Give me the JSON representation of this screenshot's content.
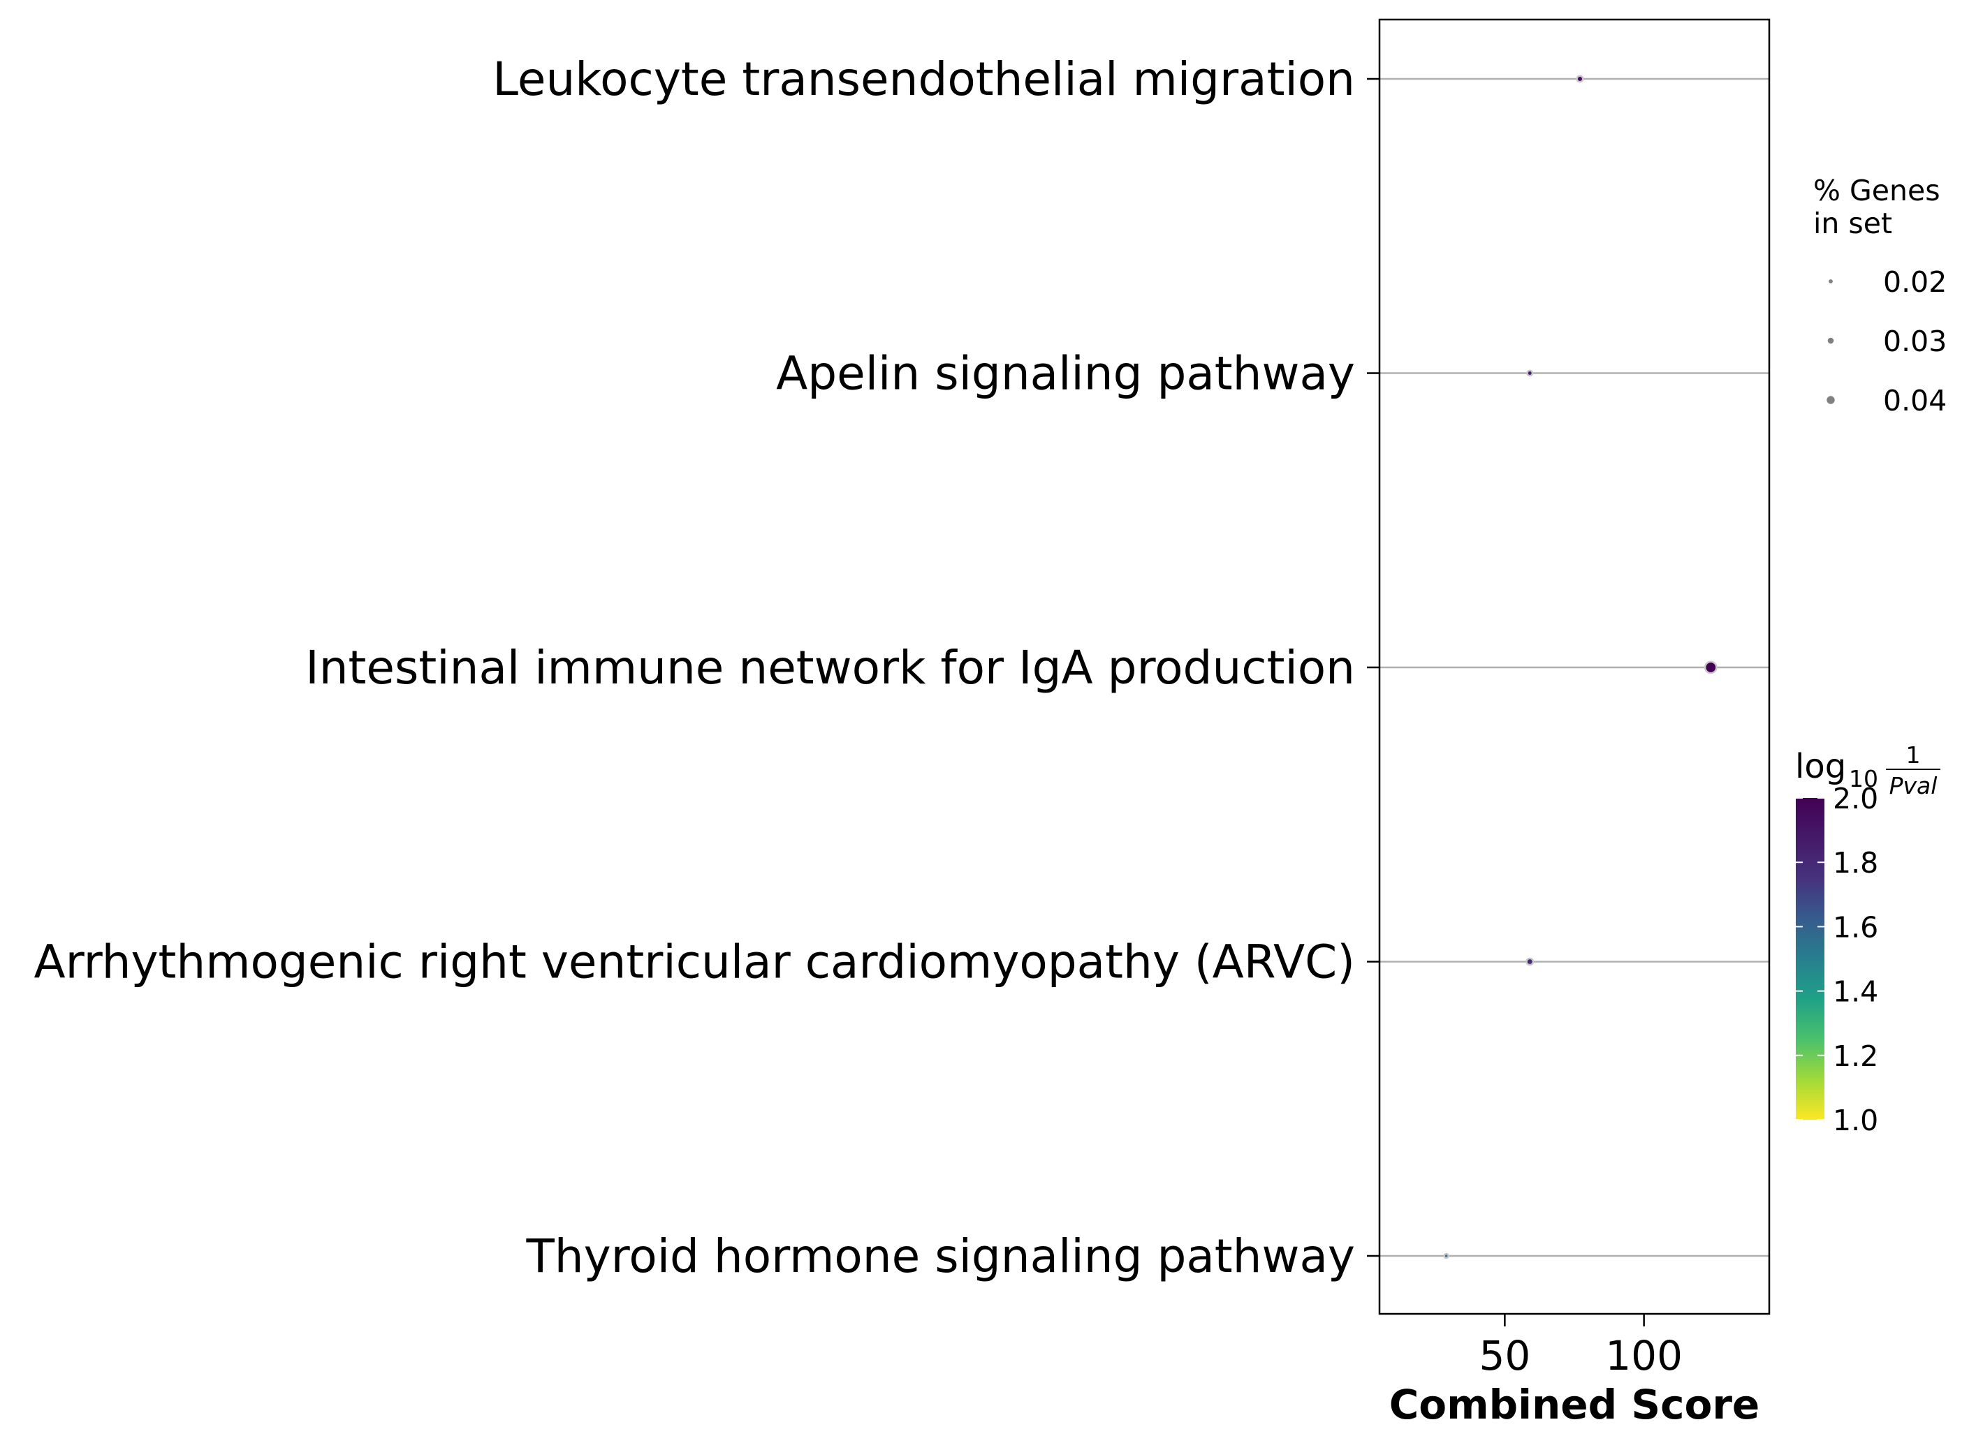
{
  "chart_data": {
    "type": "scatter",
    "xlabel": "Combined Score",
    "ylabel": "",
    "xlim": [
      5,
      145
    ],
    "x_ticks": [
      50,
      100
    ],
    "grid": "horizontal lines",
    "categories": [
      "Leukocyte transendothelial migration",
      "Apelin signaling pathway",
      "Intestinal immune network for IgA production",
      "Arrhythmogenic right ventricular cardiomyopathy (ARVC)",
      "Thyroid hormone signaling pathway"
    ],
    "points": [
      {
        "term": "Leukocyte transendothelial migration",
        "combined_score": 77,
        "log10_1_over_pval": 1.95,
        "pct_genes_in_set": 0.02
      },
      {
        "term": "Apelin signaling pathway",
        "combined_score": 59,
        "log10_1_over_pval": 1.85,
        "pct_genes_in_set": 0.017
      },
      {
        "term": "Intestinal immune network for IgA production",
        "combined_score": 124,
        "log10_1_over_pval": 2.0,
        "pct_genes_in_set": 0.041
      },
      {
        "term": "Arrhythmogenic right ventricular cardiomyopathy (ARVC)",
        "combined_score": 59,
        "log10_1_over_pval": 1.8,
        "pct_genes_in_set": 0.022
      },
      {
        "term": "Thyroid hormone signaling pathway",
        "combined_score": 29,
        "log10_1_over_pval": 1.55,
        "pct_genes_in_set": 0.013
      }
    ],
    "size_legend": {
      "title_lines": [
        "% Genes",
        "in set"
      ],
      "values": [
        0.02,
        0.03,
        0.04
      ],
      "labels": [
        "0.02",
        "0.03",
        "0.04"
      ]
    },
    "colorbar": {
      "title_prefix": "log",
      "title_sub": "10",
      "title_num": "1",
      "title_den": "Pval",
      "range": [
        1.0,
        2.0
      ],
      "ticks": [
        1.0,
        1.2,
        1.4,
        1.6,
        1.8,
        2.0
      ],
      "tick_labels": [
        "1.0",
        "1.2",
        "1.4",
        "1.6",
        "1.8",
        "2.0"
      ],
      "colormap": "viridis_r"
    }
  }
}
